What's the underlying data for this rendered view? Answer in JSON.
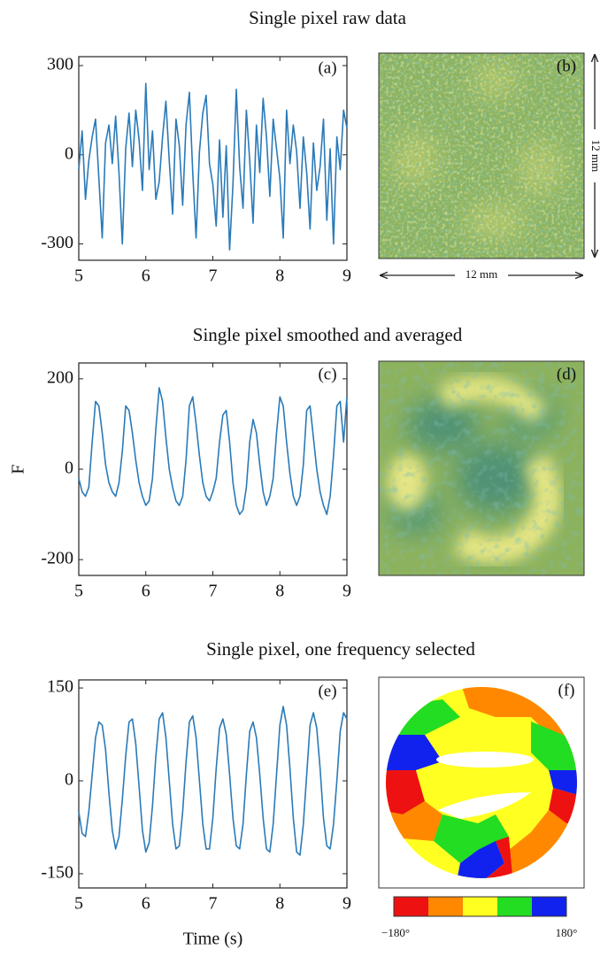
{
  "chart_data": [
    {
      "type": "line",
      "title": "Single pixel raw data",
      "panel_label": "(a)",
      "color": "#2a7ab8",
      "x": [
        5,
        5.05,
        5.1,
        5.15,
        5.2,
        5.25,
        5.3,
        5.35,
        5.4,
        5.45,
        5.5,
        5.55,
        5.6,
        5.65,
        5.7,
        5.75,
        5.8,
        5.85,
        5.9,
        5.95,
        6,
        6.05,
        6.1,
        6.15,
        6.2,
        6.25,
        6.3,
        6.35,
        6.4,
        6.45,
        6.5,
        6.55,
        6.6,
        6.65,
        6.7,
        6.75,
        6.8,
        6.85,
        6.9,
        6.95,
        7,
        7.05,
        7.1,
        7.15,
        7.2,
        7.25,
        7.3,
        7.35,
        7.4,
        7.45,
        7.5,
        7.55,
        7.6,
        7.65,
        7.7,
        7.75,
        7.8,
        7.85,
        7.9,
        7.95,
        8,
        8.05,
        8.1,
        8.15,
        8.2,
        8.25,
        8.3,
        8.35,
        8.4,
        8.45,
        8.5,
        8.55,
        8.6,
        8.65,
        8.7,
        8.75,
        8.8,
        8.85,
        8.9,
        8.95,
        9
      ],
      "values": [
        -50,
        80,
        -150,
        -20,
        60,
        120,
        -80,
        -280,
        40,
        100,
        -30,
        130,
        -60,
        -300,
        20,
        140,
        -40,
        150,
        50,
        -120,
        240,
        -50,
        80,
        -150,
        -90,
        60,
        180,
        -20,
        -200,
        120,
        30,
        -170,
        100,
        210,
        -60,
        -280,
        10,
        140,
        200,
        -30,
        -100,
        -240,
        50,
        -210,
        30,
        -320,
        -100,
        220,
        -40,
        -180,
        150,
        -20,
        -230,
        100,
        -60,
        190,
        60,
        -140,
        120,
        20,
        -80,
        -280,
        150,
        -30,
        100,
        10,
        -180,
        60,
        -60,
        -250,
        40,
        -120,
        -40,
        120,
        -220,
        20,
        -300,
        60,
        -50,
        150,
        90
      ],
      "xlim": [
        5,
        9
      ],
      "xticks": [
        5,
        6,
        7,
        8,
        9
      ],
      "ylim": [
        -355,
        330
      ],
      "yticks": [
        {
          "value": -300,
          "label": "-300"
        },
        0,
        300
      ]
    },
    {
      "type": "line",
      "title": "Single pixel smoothed and averaged",
      "panel_label": "(c)",
      "y_label": "F",
      "color": "#2a7ab8",
      "x": [
        5,
        5.05,
        5.1,
        5.15,
        5.2,
        5.25,
        5.3,
        5.35,
        5.4,
        5.45,
        5.5,
        5.55,
        5.6,
        5.65,
        5.7,
        5.75,
        5.8,
        5.85,
        5.9,
        5.95,
        6,
        6.05,
        6.1,
        6.15,
        6.2,
        6.25,
        6.3,
        6.35,
        6.4,
        6.45,
        6.5,
        6.55,
        6.6,
        6.65,
        6.7,
        6.75,
        6.8,
        6.85,
        6.9,
        6.95,
        7,
        7.05,
        7.1,
        7.15,
        7.2,
        7.25,
        7.3,
        7.35,
        7.4,
        7.45,
        7.5,
        7.55,
        7.6,
        7.65,
        7.7,
        7.75,
        7.8,
        7.85,
        7.9,
        7.95,
        8,
        8.05,
        8.1,
        8.15,
        8.2,
        8.25,
        8.3,
        8.35,
        8.4,
        8.45,
        8.5,
        8.55,
        8.6,
        8.65,
        8.7,
        8.75,
        8.8,
        8.85,
        8.9,
        8.95,
        9
      ],
      "values": [
        -20,
        -50,
        -60,
        -40,
        60,
        150,
        140,
        80,
        10,
        -30,
        -50,
        -60,
        -30,
        40,
        140,
        130,
        80,
        20,
        -30,
        -60,
        -80,
        -70,
        -20,
        90,
        180,
        150,
        70,
        0,
        -40,
        -70,
        -80,
        -60,
        20,
        140,
        160,
        100,
        30,
        -30,
        -60,
        -70,
        -50,
        -20,
        60,
        120,
        130,
        60,
        -30,
        -80,
        -100,
        -90,
        -40,
        60,
        110,
        80,
        10,
        -50,
        -80,
        -60,
        -20,
        80,
        160,
        140,
        60,
        -10,
        -60,
        -80,
        -60,
        10,
        130,
        140,
        70,
        0,
        -50,
        -80,
        -100,
        -60,
        30,
        140,
        150,
        60,
        160
      ],
      "xlim": [
        5,
        9
      ],
      "xticks": [
        5,
        6,
        7,
        8,
        9
      ],
      "ylim": [
        -235,
        235
      ],
      "yticks": [
        {
          "value": -200,
          "label": "-200"
        },
        0,
        200
      ]
    },
    {
      "type": "line",
      "title": "Single pixel, one frequency selected",
      "panel_label": "(e)",
      "x_label": "Time (s)",
      "color": "#2a7ab8",
      "x": [
        5,
        5.05,
        5.1,
        5.15,
        5.2,
        5.25,
        5.3,
        5.35,
        5.4,
        5.45,
        5.5,
        5.55,
        5.6,
        5.65,
        5.7,
        5.75,
        5.8,
        5.85,
        5.9,
        5.95,
        6,
        6.05,
        6.1,
        6.15,
        6.2,
        6.25,
        6.3,
        6.35,
        6.4,
        6.45,
        6.5,
        6.55,
        6.6,
        6.65,
        6.7,
        6.75,
        6.8,
        6.85,
        6.9,
        6.95,
        7,
        7.05,
        7.1,
        7.15,
        7.2,
        7.25,
        7.3,
        7.35,
        7.4,
        7.45,
        7.5,
        7.55,
        7.6,
        7.65,
        7.7,
        7.75,
        7.8,
        7.85,
        7.9,
        7.95,
        8,
        8.05,
        8.1,
        8.15,
        8.2,
        8.25,
        8.3,
        8.35,
        8.4,
        8.45,
        8.5,
        8.55,
        8.6,
        8.65,
        8.7,
        8.75,
        8.8,
        8.85,
        8.9,
        8.95,
        9
      ],
      "values": [
        -50,
        -85,
        -90,
        -50,
        10,
        70,
        95,
        90,
        50,
        -20,
        -80,
        -110,
        -90,
        -30,
        40,
        95,
        100,
        60,
        -10,
        -80,
        -115,
        -100,
        -40,
        40,
        100,
        110,
        70,
        0,
        -70,
        -110,
        -105,
        -50,
        30,
        95,
        105,
        70,
        0,
        -70,
        -110,
        -110,
        -60,
        20,
        85,
        100,
        75,
        10,
        -60,
        -105,
        -110,
        -70,
        10,
        80,
        95,
        70,
        10,
        -60,
        -110,
        -115,
        -70,
        10,
        90,
        120,
        90,
        20,
        -60,
        -115,
        -120,
        -70,
        10,
        90,
        110,
        85,
        20,
        -60,
        -105,
        -110,
        -70,
        0,
        80,
        110,
        100
      ],
      "xlim": [
        5,
        9
      ],
      "xticks": [
        5,
        6,
        7,
        8,
        9
      ],
      "ylim": [
        -173,
        163
      ],
      "yticks": [
        {
          "value": -150,
          "label": "-150"
        },
        0,
        150
      ]
    }
  ],
  "images": [
    {
      "panel_label": "(b)",
      "width_label": "12 mm",
      "height_label": "12 mm"
    },
    {
      "panel_label": "(d)"
    },
    {
      "panel_label": "(f)"
    }
  ],
  "colorbar": {
    "colors": [
      "#ee1111",
      "#ff8800",
      "#ffff22",
      "#22dd22",
      "#1122ee"
    ],
    "min_label": "−180°",
    "max_label": "180°"
  }
}
